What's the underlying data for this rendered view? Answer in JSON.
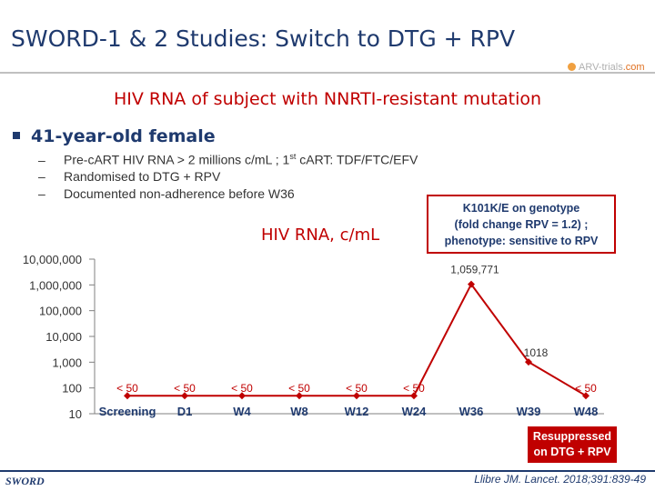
{
  "slide": {
    "title": "SWORD-1 & 2 Studies: Switch to DTG + RPV",
    "logo_text_1": "ARV-trials",
    "logo_text_2": ".com",
    "subtitle": "HIV RNA of subject with NNRTI-resistant mutation",
    "bullet": "41-year-old female",
    "sub_items": [
      {
        "pre": "Pre-cART HIV RNA > 2 millions c/mL ; 1",
        "sup": "st",
        "post": " cART: TDF/FTC/EFV"
      },
      {
        "pre": "Randomised to DTG + RPV",
        "sup": "",
        "post": ""
      },
      {
        "pre": "Documented non-adherence before W36",
        "sup": "",
        "post": ""
      }
    ],
    "dash": "–",
    "callout": [
      "K101K/E on genotype",
      "(fold change RPV = 1.2) ;",
      "phenotype: sensitive to RPV"
    ],
    "resuppressed": [
      "Resuppressed",
      "on DTG + RPV"
    ],
    "brand": "SWORD",
    "reference": "Llibre JM. Lancet. 2018;391:839-49"
  },
  "chart_data": {
    "type": "line",
    "ylabel": "HIV RNA, c/mL",
    "yscale": "log",
    "yticks": [
      {
        "value": 10,
        "label": "10"
      },
      {
        "value": 100,
        "label": "100"
      },
      {
        "value": 1000,
        "label": "1,000"
      },
      {
        "value": 10000,
        "label": "10,000"
      },
      {
        "value": 100000,
        "label": "100,000"
      },
      {
        "value": 1000000,
        "label": "1,000,000"
      },
      {
        "value": 10000000,
        "label": "10,000,000"
      }
    ],
    "categories": [
      "Screening",
      "D1",
      "W4",
      "W8",
      "W12",
      "W24",
      "W36",
      "W39",
      "W48"
    ],
    "series": [
      {
        "name": "HIV RNA",
        "color": "#c00000",
        "values": [
          50,
          50,
          50,
          50,
          50,
          50,
          1059771,
          1018,
          50
        ],
        "labels": [
          "< 50",
          "< 50",
          "< 50",
          "< 50",
          "< 50",
          "< 50",
          "1,059,771",
          "1018",
          "< 50"
        ]
      }
    ]
  }
}
